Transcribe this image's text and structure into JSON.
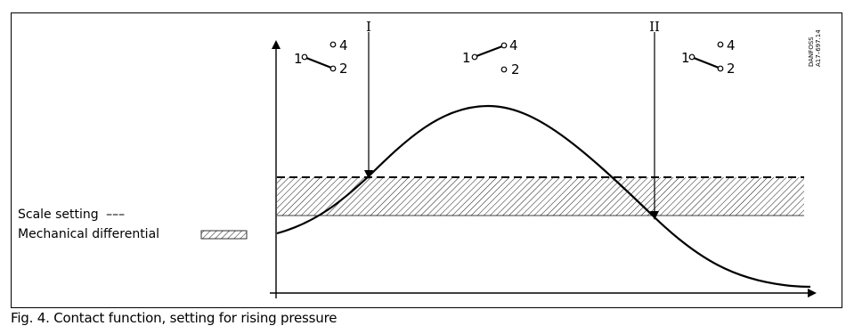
{
  "caption": "Fig. 4.  Contact function, setting for rising pressure",
  "legend": {
    "scale_setting": "Scale setting",
    "scale_setting_symbol": "–––",
    "mechanical_differential": "Mechanical differential"
  },
  "markers": {
    "first": "I",
    "second": "II"
  },
  "contacts": {
    "left": {
      "t1": "1",
      "t2": "2",
      "t4": "4",
      "closed": "1-2"
    },
    "middle": {
      "t1": "1",
      "t2": "2",
      "t4": "4",
      "closed": "1-4"
    },
    "right": {
      "t1": "1",
      "t2": "2",
      "t4": "4",
      "closed": "1-2"
    }
  },
  "stamp": {
    "line1": "DANFOSS",
    "line2": "A17–697.14"
  }
}
